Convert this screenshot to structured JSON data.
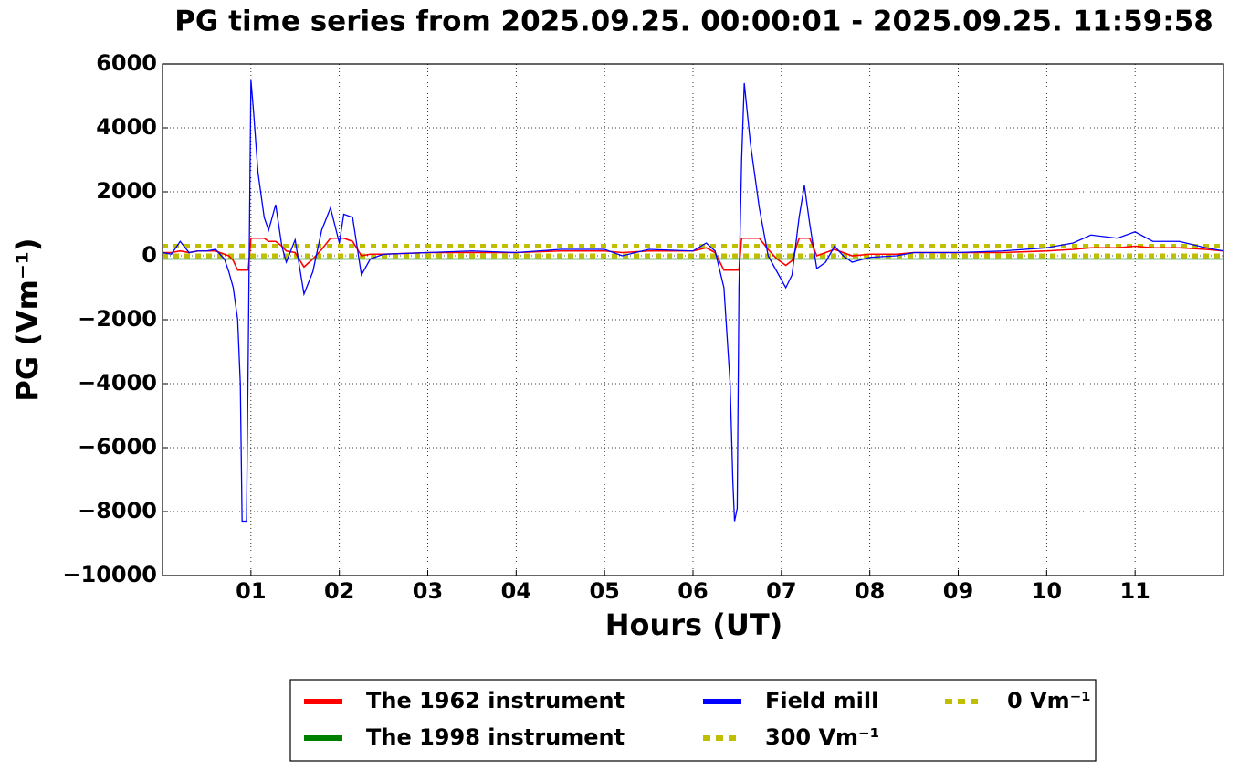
{
  "chart_data": {
    "type": "line",
    "title": "PG time series from 2025.09.25. 00:00:01 - 2025.09.25. 11:59:58",
    "xlabel": "Hours (UT)",
    "ylabel": "PG (Vm⁻¹)",
    "x": [
      0,
      0.1,
      0.2,
      0.3,
      0.4,
      0.5,
      0.6,
      0.7,
      0.75,
      0.8,
      0.85,
      0.88,
      0.9,
      0.95,
      0.97,
      1.0,
      1.03,
      1.08,
      1.15,
      1.2,
      1.28,
      1.35,
      1.4,
      1.5,
      1.6,
      1.7,
      1.8,
      1.9,
      2.0,
      2.05,
      2.15,
      2.25,
      2.35,
      2.5,
      3.0,
      3.5,
      4.0,
      4.5,
      5.0,
      5.2,
      5.5,
      6.0,
      6.15,
      6.25,
      6.35,
      6.42,
      6.45,
      6.47,
      6.5,
      6.52,
      6.55,
      6.58,
      6.65,
      6.75,
      6.85,
      6.95,
      7.05,
      7.12,
      7.2,
      7.26,
      7.32,
      7.4,
      7.5,
      7.6,
      7.7,
      7.8,
      8.0,
      8.3,
      8.5,
      9.0,
      9.5,
      10.0,
      10.3,
      10.5,
      10.8,
      11.0,
      11.2,
      11.5,
      11.8,
      12.0
    ],
    "series": [
      {
        "name": "The 1962 instrument",
        "color": "#ff0000",
        "values": [
          100,
          100,
          150,
          100,
          150,
          150,
          150,
          50,
          0,
          -150,
          -450,
          -450,
          -450,
          -450,
          -450,
          550,
          550,
          550,
          550,
          450,
          450,
          300,
          150,
          100,
          -350,
          -100,
          200,
          550,
          550,
          550,
          450,
          0,
          50,
          50,
          100,
          100,
          100,
          150,
          150,
          100,
          150,
          150,
          250,
          100,
          -450,
          -450,
          -450,
          -450,
          -450,
          -450,
          550,
          550,
          550,
          550,
          200,
          -100,
          -300,
          -150,
          550,
          550,
          550,
          0,
          100,
          200,
          100,
          0,
          50,
          50,
          100,
          100,
          100,
          150,
          200,
          250,
          250,
          300,
          250,
          250,
          200,
          150
        ]
      },
      {
        "name": "The 1998 instrument",
        "color": "#008000",
        "values": [
          -100,
          -100,
          -100,
          -100,
          -100,
          -100,
          -100,
          -100,
          -100,
          -100,
          -100,
          -100,
          -100,
          -100,
          -100,
          -100,
          -100,
          -100,
          -100,
          -100,
          -100,
          -100,
          -100,
          -100,
          -100,
          -100,
          -100,
          -100,
          -100,
          -100,
          -100,
          -100,
          -100,
          -100,
          -100,
          -100,
          -100,
          -100,
          -100,
          -100,
          -100,
          -100,
          -100,
          -100,
          -100,
          -100,
          -100,
          -100,
          -100,
          -100,
          -100,
          -100,
          -100,
          -100,
          -100,
          -100,
          -100,
          -100,
          -100,
          -100,
          -100,
          -100,
          -100,
          -100,
          -100,
          -100,
          -100,
          -100,
          -100,
          -100,
          -100,
          -100,
          -100,
          -100,
          -100,
          -100,
          -100,
          -100,
          -100,
          -100
        ]
      },
      {
        "name": "Field mill",
        "color": "#0000ff",
        "values": [
          100,
          50,
          450,
          100,
          150,
          150,
          200,
          -100,
          -500,
          -1000,
          -2000,
          -4000,
          -8300,
          -8300,
          -3000,
          5500,
          4500,
          2600,
          1200,
          800,
          1600,
          300,
          -200,
          500,
          -1200,
          -500,
          800,
          1500,
          400,
          1300,
          1200,
          -600,
          -100,
          50,
          100,
          150,
          100,
          200,
          200,
          0,
          200,
          150,
          400,
          150,
          -1000,
          -4000,
          -7000,
          -8300,
          -7900,
          -1000,
          3000,
          5400,
          3500,
          1500,
          0,
          -500,
          -1000,
          -600,
          1200,
          2200,
          1000,
          -400,
          -200,
          300,
          0,
          -200,
          -50,
          0,
          100,
          100,
          150,
          250,
          400,
          650,
          550,
          750,
          450,
          450,
          250,
          150
        ]
      }
    ],
    "hlines": [
      {
        "name": "300 Vm⁻¹",
        "value": 300,
        "color": "#bfbf00"
      },
      {
        "name": "0 Vm⁻¹",
        "value": 0,
        "color": "#bfbf00"
      }
    ],
    "xlim": [
      0,
      12
    ],
    "xticks": [
      {
        "value": 1,
        "label": "01"
      },
      {
        "value": 2,
        "label": "02"
      },
      {
        "value": 3,
        "label": "03"
      },
      {
        "value": 4,
        "label": "04"
      },
      {
        "value": 5,
        "label": "05"
      },
      {
        "value": 6,
        "label": "06"
      },
      {
        "value": 7,
        "label": "07"
      },
      {
        "value": 8,
        "label": "08"
      },
      {
        "value": 9,
        "label": "09"
      },
      {
        "value": 10,
        "label": "10"
      },
      {
        "value": 11,
        "label": "11"
      }
    ],
    "ylim": [
      -10000,
      6000
    ],
    "yticks": [
      {
        "value": -10000,
        "label": "−10000"
      },
      {
        "value": -8000,
        "label": "−8000"
      },
      {
        "value": -6000,
        "label": "−6000"
      },
      {
        "value": -4000,
        "label": "−4000"
      },
      {
        "value": -2000,
        "label": "−2000"
      },
      0,
      2000,
      4000,
      6000
    ],
    "grid": true,
    "legend": "bottom"
  }
}
